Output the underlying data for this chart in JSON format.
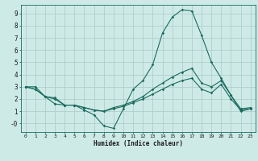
{
  "xlabel": "Humidex (Indice chaleur)",
  "bg_color": "#ceeae7",
  "grid_color": "#b0ceca",
  "line_color": "#1a6b5e",
  "xlim": [
    -0.5,
    23.5
  ],
  "ylim": [
    -0.7,
    9.7
  ],
  "xticks": [
    0,
    1,
    2,
    3,
    4,
    5,
    6,
    7,
    8,
    9,
    10,
    11,
    12,
    13,
    14,
    15,
    16,
    17,
    18,
    19,
    20,
    21,
    22,
    23
  ],
  "yticks": [
    0,
    1,
    2,
    3,
    4,
    5,
    6,
    7,
    8,
    9
  ],
  "ytick_labels": [
    "-0",
    "1",
    "2",
    "3",
    "4",
    "5",
    "6",
    "7",
    "8",
    "9"
  ],
  "series": [
    [
      3.0,
      3.0,
      2.2,
      1.6,
      1.5,
      1.5,
      1.1,
      0.7,
      -0.2,
      -0.4,
      1.2,
      2.8,
      3.5,
      4.8,
      7.4,
      8.7,
      9.3,
      9.2,
      7.2,
      5.0,
      3.7,
      2.3,
      1.0,
      1.2
    ],
    [
      3.0,
      2.8,
      2.2,
      2.1,
      1.5,
      1.5,
      1.3,
      1.1,
      1.0,
      1.3,
      1.5,
      1.8,
      2.2,
      2.8,
      3.3,
      3.8,
      4.2,
      4.5,
      3.3,
      3.0,
      3.5,
      2.3,
      1.2,
      1.3
    ],
    [
      3.0,
      2.8,
      2.2,
      2.0,
      1.5,
      1.5,
      1.3,
      1.1,
      1.0,
      1.2,
      1.4,
      1.7,
      2.0,
      2.4,
      2.8,
      3.2,
      3.5,
      3.7,
      2.8,
      2.5,
      3.2,
      2.0,
      1.1,
      1.2
    ]
  ]
}
